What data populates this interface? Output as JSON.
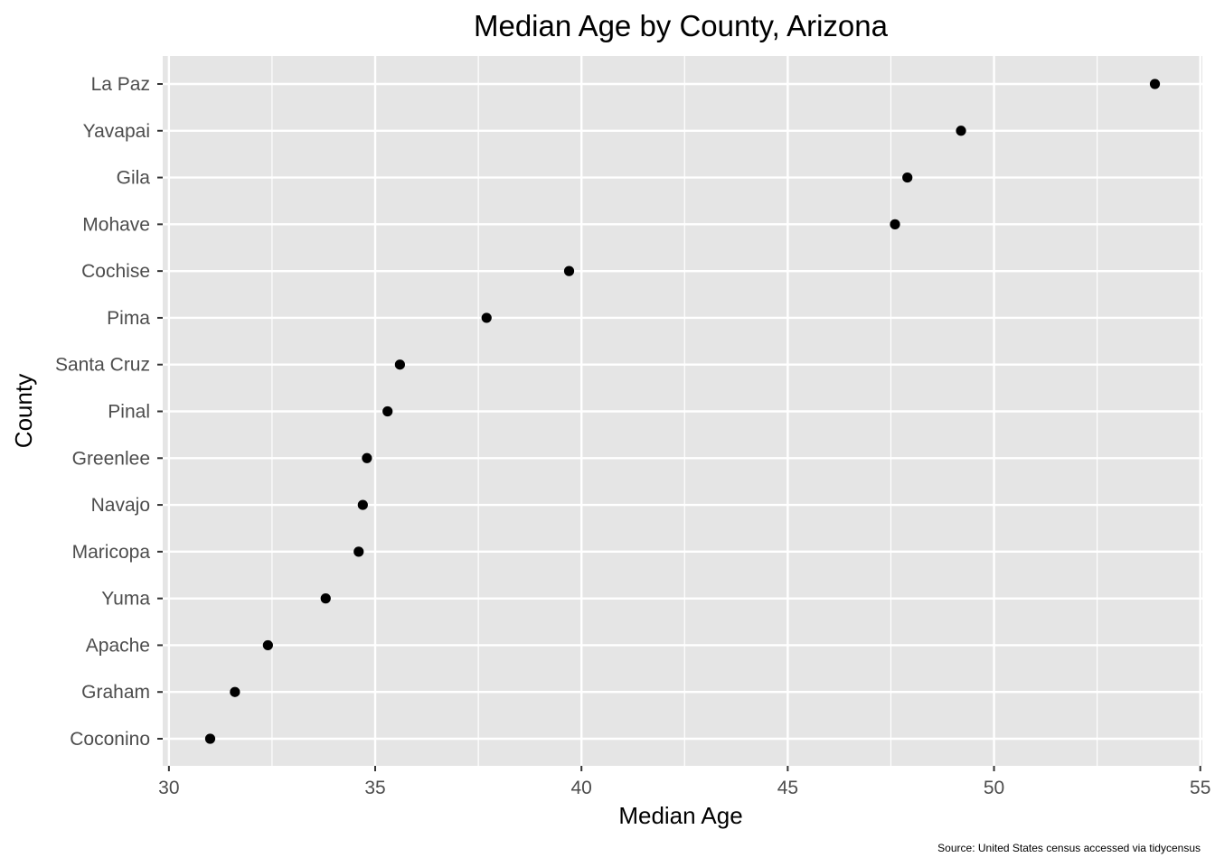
{
  "chart_data": {
    "type": "scatter",
    "title": "Median Age by County, Arizona",
    "xlabel": "Median Age",
    "ylabel": "County",
    "caption": "Source: United States census accessed via tidycensus",
    "xlim": [
      29.85,
      55.05
    ],
    "x_ticks": [
      30,
      35,
      40,
      45,
      50,
      55
    ],
    "x_tick_labels": [
      "30",
      "35",
      "40",
      "45",
      "50",
      "55"
    ],
    "grid": true,
    "legend": "none",
    "colors": {
      "panel_background": "#e5e5e5",
      "grid": "#ffffff",
      "point": "#000000",
      "tick_label": "#4d4d4d"
    },
    "categories": [
      "La Paz",
      "Yavapai",
      "Gila",
      "Mohave",
      "Cochise",
      "Pima",
      "Santa Cruz",
      "Pinal",
      "Greenlee",
      "Navajo",
      "Maricopa",
      "Yuma",
      "Apache",
      "Graham",
      "Coconino"
    ],
    "values": [
      53.9,
      49.2,
      47.9,
      47.6,
      39.7,
      37.7,
      35.6,
      35.3,
      34.8,
      34.7,
      34.6,
      33.8,
      32.4,
      31.6,
      31.0
    ]
  }
}
